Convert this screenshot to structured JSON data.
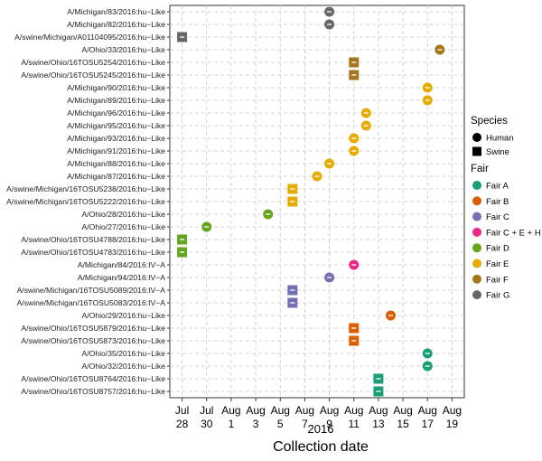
{
  "chart_data": {
    "type": "scatter",
    "xlabel": "Collection date",
    "x_year_label": "2016",
    "x_ticks": [
      {
        "date": "2016-07-28",
        "month": "Jul",
        "day": "28"
      },
      {
        "date": "2016-07-30",
        "month": "Jul",
        "day": "30"
      },
      {
        "date": "2016-08-01",
        "month": "Aug",
        "day": "1"
      },
      {
        "date": "2016-08-03",
        "month": "Aug",
        "day": "3"
      },
      {
        "date": "2016-08-05",
        "month": "Aug",
        "day": "5"
      },
      {
        "date": "2016-08-07",
        "month": "Aug",
        "day": "7"
      },
      {
        "date": "2016-08-09",
        "month": "Aug",
        "day": "9"
      },
      {
        "date": "2016-08-11",
        "month": "Aug",
        "day": "11"
      },
      {
        "date": "2016-08-13",
        "month": "Aug",
        "day": "13"
      },
      {
        "date": "2016-08-15",
        "month": "Aug",
        "day": "15"
      },
      {
        "date": "2016-08-17",
        "month": "Aug",
        "day": "17"
      },
      {
        "date": "2016-08-19",
        "month": "Aug",
        "day": "19"
      }
    ],
    "xlim": [
      "2016-07-27",
      "2016-08-20"
    ],
    "grid": true,
    "legend_placement": "right",
    "legend_species": {
      "title": "Species",
      "items": [
        {
          "label": "Human",
          "shape": "circle"
        },
        {
          "label": "Swine",
          "shape": "square"
        }
      ]
    },
    "legend_fair": {
      "title": "Fair",
      "items": [
        {
          "label": "Fair A",
          "color": "#1b9e77"
        },
        {
          "label": "Fair B",
          "color": "#d95f02"
        },
        {
          "label": "Fair C",
          "color": "#7570b3"
        },
        {
          "label": "Fair C + E + H",
          "color": "#e7298a"
        },
        {
          "label": "Fair D",
          "color": "#66a61e"
        },
        {
          "label": "Fair E",
          "color": "#e6ab02"
        },
        {
          "label": "Fair F",
          "color": "#a6761d"
        },
        {
          "label": "Fair G",
          "color": "#666666"
        }
      ]
    },
    "points": [
      {
        "label": "A/Michigan/83/2016:hu−Like",
        "date": "2016-08-09",
        "species": "Human",
        "fair": "Fair G"
      },
      {
        "label": "A/Michigan/82/2016:hu−Like",
        "date": "2016-08-09",
        "species": "Human",
        "fair": "Fair G"
      },
      {
        "label": "A/swine/Michigan/A01104095/2016:hu−Like",
        "date": "2016-07-28",
        "species": "Swine",
        "fair": "Fair G"
      },
      {
        "label": "A/Ohio/33/2016:hu−Like",
        "date": "2016-08-18",
        "species": "Human",
        "fair": "Fair F"
      },
      {
        "label": "A/swine/Ohio/16TOSU5254/2016:hu−Like",
        "date": "2016-08-11",
        "species": "Swine",
        "fair": "Fair F"
      },
      {
        "label": "A/swine/Ohio/16TOSU5245/2016:hu−Like",
        "date": "2016-08-11",
        "species": "Swine",
        "fair": "Fair F"
      },
      {
        "label": "A/Michigan/90/2016:hu−Like",
        "date": "2016-08-17",
        "species": "Human",
        "fair": "Fair E"
      },
      {
        "label": "A/Michigan/89/2016:hu−Like",
        "date": "2016-08-17",
        "species": "Human",
        "fair": "Fair E"
      },
      {
        "label": "A/Michigan/96/2016:hu−Like",
        "date": "2016-08-12",
        "species": "Human",
        "fair": "Fair E"
      },
      {
        "label": "A/Michigan/95/2016:hu−Like",
        "date": "2016-08-12",
        "species": "Human",
        "fair": "Fair E"
      },
      {
        "label": "A/Michigan/93/2016:hu−Like",
        "date": "2016-08-11",
        "species": "Human",
        "fair": "Fair E"
      },
      {
        "label": "A/Michigan/91/2016:hu−Like",
        "date": "2016-08-11",
        "species": "Human",
        "fair": "Fair E"
      },
      {
        "label": "A/Michigan/88/2016:hu−Like",
        "date": "2016-08-09",
        "species": "Human",
        "fair": "Fair E"
      },
      {
        "label": "A/Michigan/87/2016:hu−Like",
        "date": "2016-08-08",
        "species": "Human",
        "fair": "Fair E"
      },
      {
        "label": "A/swine/Michigan/16TOSU5238/2016:hu−Like",
        "date": "2016-08-06",
        "species": "Swine",
        "fair": "Fair E"
      },
      {
        "label": "A/swine/Michigan/16TOSU5222/2016:hu−Like",
        "date": "2016-08-06",
        "species": "Swine",
        "fair": "Fair E"
      },
      {
        "label": "A/Ohio/28/2016:hu−Like",
        "date": "2016-08-04",
        "species": "Human",
        "fair": "Fair D"
      },
      {
        "label": "A/Ohio/27/2016:hu−Like",
        "date": "2016-07-30",
        "species": "Human",
        "fair": "Fair D"
      },
      {
        "label": "A/swine/Ohio/16TOSU4788/2016:hu−Like",
        "date": "2016-07-28",
        "species": "Swine",
        "fair": "Fair D"
      },
      {
        "label": "A/swine/Ohio/16TOSU4783/2016:hu−Like",
        "date": "2016-07-28",
        "species": "Swine",
        "fair": "Fair D"
      },
      {
        "label": "A/Michigan/84/2016:IV−A",
        "date": "2016-08-11",
        "species": "Human",
        "fair": "Fair C + E + H"
      },
      {
        "label": "A/Michigan/94/2016:IV−A",
        "date": "2016-08-09",
        "species": "Human",
        "fair": "Fair C"
      },
      {
        "label": "A/swine/Michigan/16TOSU5089/2016:IV−A",
        "date": "2016-08-06",
        "species": "Swine",
        "fair": "Fair C"
      },
      {
        "label": "A/swine/Michigan/16TOSU5083/2016:IV−A",
        "date": "2016-08-06",
        "species": "Swine",
        "fair": "Fair C"
      },
      {
        "label": "A/Ohio/29/2016:hu−Like",
        "date": "2016-08-14",
        "species": "Human",
        "fair": "Fair B"
      },
      {
        "label": "A/swine/Ohio/16TOSU5879/2016:hu−Like",
        "date": "2016-08-11",
        "species": "Swine",
        "fair": "Fair B"
      },
      {
        "label": "A/swine/Ohio/16TOSU5873/2016:hu−Like",
        "date": "2016-08-11",
        "species": "Swine",
        "fair": "Fair B"
      },
      {
        "label": "A/Ohio/35/2016:hu−Like",
        "date": "2016-08-17",
        "species": "Human",
        "fair": "Fair A"
      },
      {
        "label": "A/Ohio/32/2016:hu−Like",
        "date": "2016-08-17",
        "species": "Human",
        "fair": "Fair A"
      },
      {
        "label": "A/swine/Ohio/16TOSU8764/2016:hu−Like",
        "date": "2016-08-13",
        "species": "Swine",
        "fair": "Fair A"
      },
      {
        "label": "A/swine/Ohio/16TOSU8757/2016:hu−Like",
        "date": "2016-08-13",
        "species": "Swine",
        "fair": "Fair A"
      }
    ]
  }
}
